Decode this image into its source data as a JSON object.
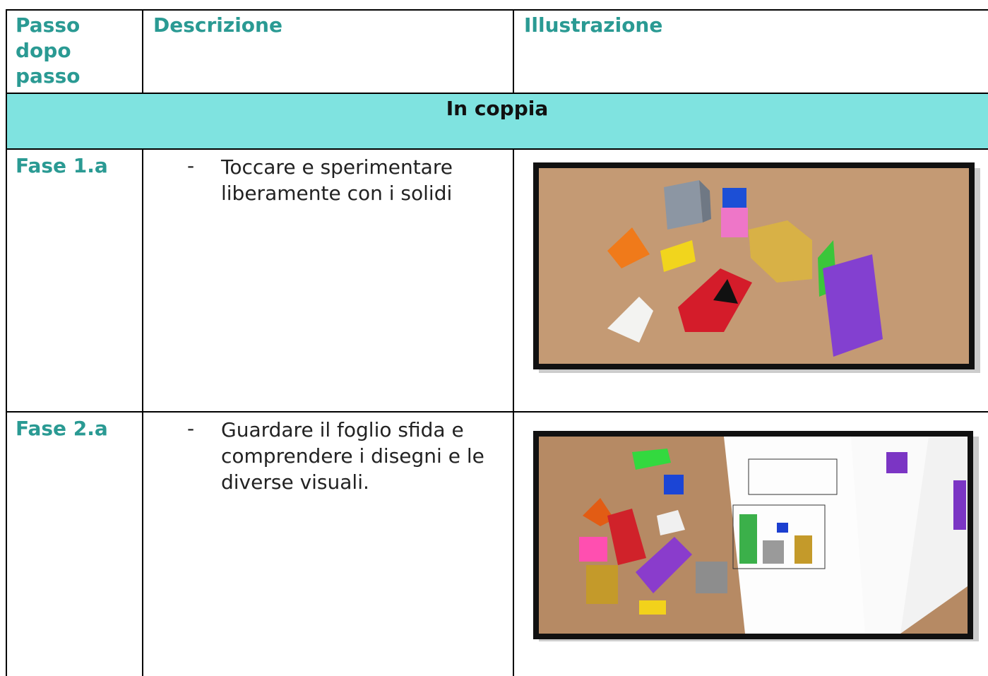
{
  "header": {
    "step": "Passo dopo passo",
    "description": "Descrizione",
    "illustration": "Illustrazione"
  },
  "section": "In coppia",
  "rows": [
    {
      "step": "Fase 1.a",
      "marker": "-",
      "description": "Toccare e sperimentare liberamente con i solidi"
    },
    {
      "step": "Fase 2.a",
      "marker": "-",
      "description": "Guardare il foglio sfida e comprendere i disegni e le diverse visuali."
    }
  ]
}
